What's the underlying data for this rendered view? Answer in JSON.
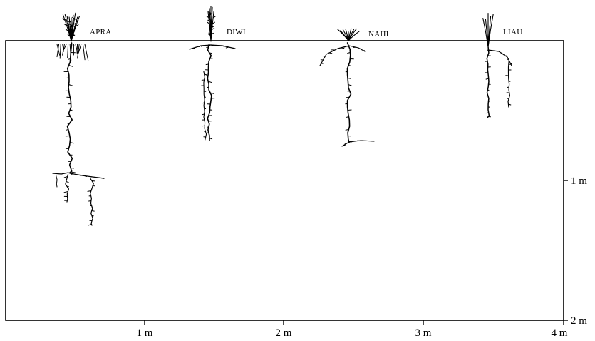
{
  "plants": [
    {
      "id": "apra",
      "label": "APRA"
    },
    {
      "id": "diwi",
      "label": "DIWI"
    },
    {
      "id": "nahi",
      "label": "NAHI"
    },
    {
      "id": "liau",
      "label": "LIAU"
    }
  ],
  "x_axis": {
    "ticks": [
      "1 m",
      "2 m",
      "3 m",
      "4 m"
    ]
  },
  "y_axis": {
    "ticks": [
      "1 m",
      "2 m"
    ]
  }
}
